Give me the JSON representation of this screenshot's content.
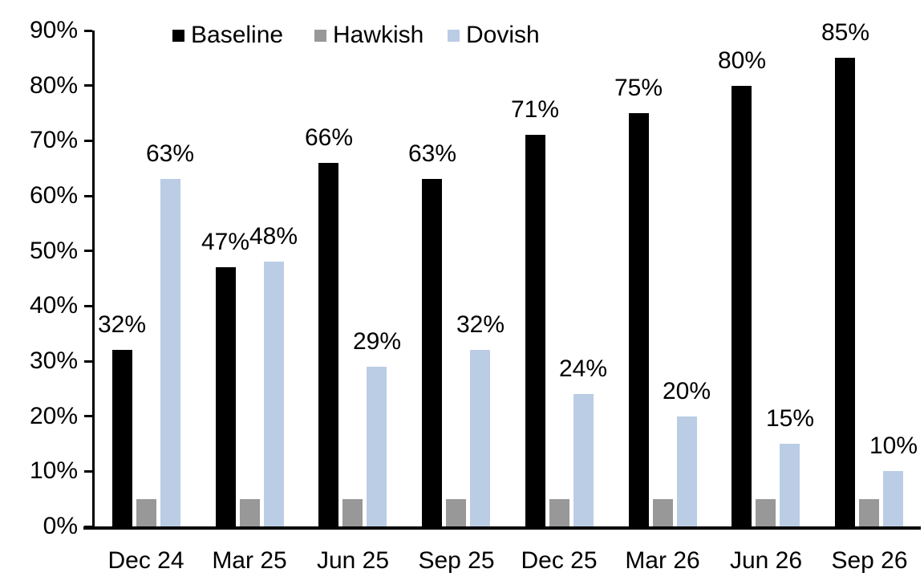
{
  "chart_data": {
    "type": "bar",
    "title": "",
    "xlabel": "",
    "ylabel": "",
    "categories": [
      "Dec 24",
      "Mar 25",
      "Jun 25",
      "Sep 25",
      "Dec 25",
      "Mar 26",
      "Jun 26",
      "Sep 26"
    ],
    "series": [
      {
        "name": "Baseline",
        "color": "#000000",
        "values": [
          32,
          47,
          66,
          63,
          71,
          75,
          80,
          85
        ],
        "data_labels_shown": true
      },
      {
        "name": "Hawkish",
        "color": "#989898",
        "values": [
          5,
          5,
          5,
          5,
          5,
          5,
          5,
          5
        ],
        "data_labels_shown": false
      },
      {
        "name": "Dovish",
        "color": "#BACDE4",
        "values": [
          63,
          48,
          29,
          32,
          24,
          20,
          15,
          10
        ],
        "data_labels_shown": true
      }
    ],
    "data_label_suffix": "%",
    "ylim": [
      0,
      90
    ],
    "ytick_step": 10,
    "ytick_labels": [
      "0%",
      "10%",
      "20%",
      "30%",
      "40%",
      "50%",
      "60%",
      "70%",
      "80%",
      "90%"
    ],
    "legend_position": "top",
    "grid": false,
    "axis_color": "#000000",
    "background_color": "#ffffff"
  }
}
